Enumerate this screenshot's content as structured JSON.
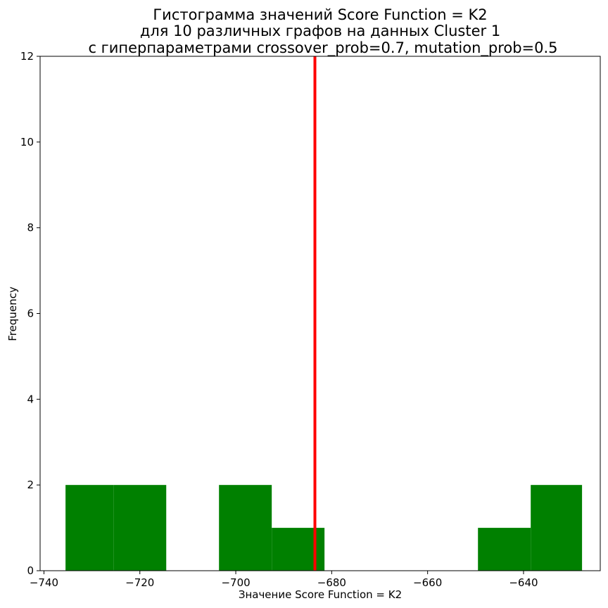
{
  "chart_data": {
    "type": "bar",
    "subtype": "histogram",
    "title_lines": [
      "Гистограмма значений Score Function = K2",
      "для 10 различных графов на данных Cluster 1",
      "с гиперпараметрами crossover_prob=0.7, mutation_prob=0.5"
    ],
    "xlabel": "Значение Score Function = K2",
    "ylabel": "Frequency",
    "xlim": [
      -740.8,
      -624.0
    ],
    "ylim": [
      0,
      12
    ],
    "xticks": [
      -740,
      -720,
      -700,
      -680,
      -660,
      -640
    ],
    "xtick_labels": [
      "−740",
      "−720",
      "−700",
      "−680",
      "−660",
      "−640"
    ],
    "yticks": [
      0,
      2,
      4,
      6,
      8,
      10,
      12
    ],
    "ytick_labels": [
      "0",
      "2",
      "4",
      "6",
      "8",
      "10",
      "12"
    ],
    "bar_color": "#008000",
    "bins": [
      {
        "x0": -735.5,
        "x1": -725.5,
        "count": 2
      },
      {
        "x0": -725.5,
        "x1": -714.5,
        "count": 2
      },
      {
        "x0": -714.5,
        "x1": -703.5,
        "count": 0
      },
      {
        "x0": -703.5,
        "x1": -692.5,
        "count": 2
      },
      {
        "x0": -692.5,
        "x1": -681.5,
        "count": 1
      },
      {
        "x0": -681.5,
        "x1": -670.5,
        "count": 0
      },
      {
        "x0": -670.5,
        "x1": -659.5,
        "count": 0
      },
      {
        "x0": -659.5,
        "x1": -649.5,
        "count": 0
      },
      {
        "x0": -649.5,
        "x1": -638.5,
        "count": 1
      },
      {
        "x0": -638.5,
        "x1": -627.8,
        "count": 2
      }
    ],
    "reference_line": {
      "x": -683.5,
      "color": "#ff0000"
    },
    "grid": false,
    "legend": "none"
  }
}
